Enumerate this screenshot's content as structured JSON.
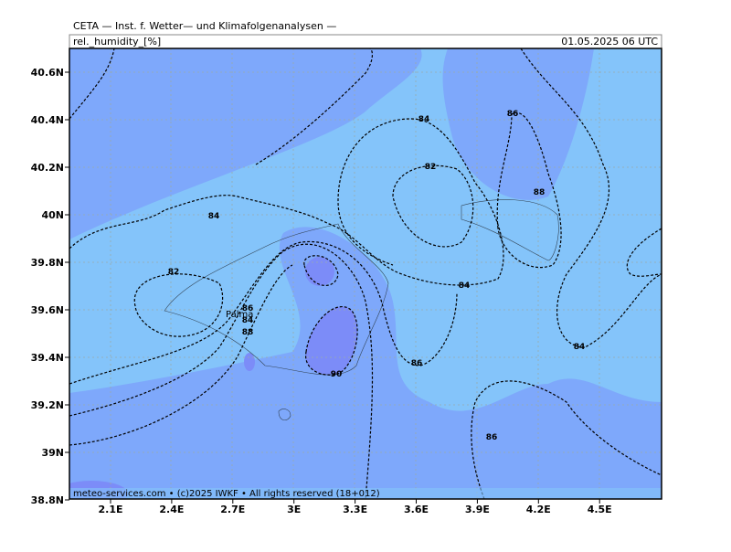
{
  "header": {
    "source": "CETA — Inst. f. Wetter— und Klimafolgenanalysen —",
    "variable": "rel._humidity_[%]",
    "datetime": "01.05.2025 06 UTC"
  },
  "axes": {
    "lon_ticks": [
      "2.1E",
      "2.4E",
      "2.7E",
      "3E",
      "3.3E",
      "3.6E",
      "3.9E",
      "4.2E",
      "4.5E"
    ],
    "lat_ticks": [
      "40.6N",
      "40.4N",
      "40.2N",
      "40N",
      "39.8N",
      "39.6N",
      "39.4N",
      "39.2N",
      "39N",
      "38.8N"
    ]
  },
  "contour_labels": [
    "84",
    "86",
    "82",
    "88",
    "84",
    "82",
    "84",
    "86",
    "88",
    "84",
    "90",
    "86",
    "84",
    "86"
  ],
  "place": "Palma",
  "footer": "meteo-services.com • (c)2025 IWKF • All rights reserved (18+012)"
}
